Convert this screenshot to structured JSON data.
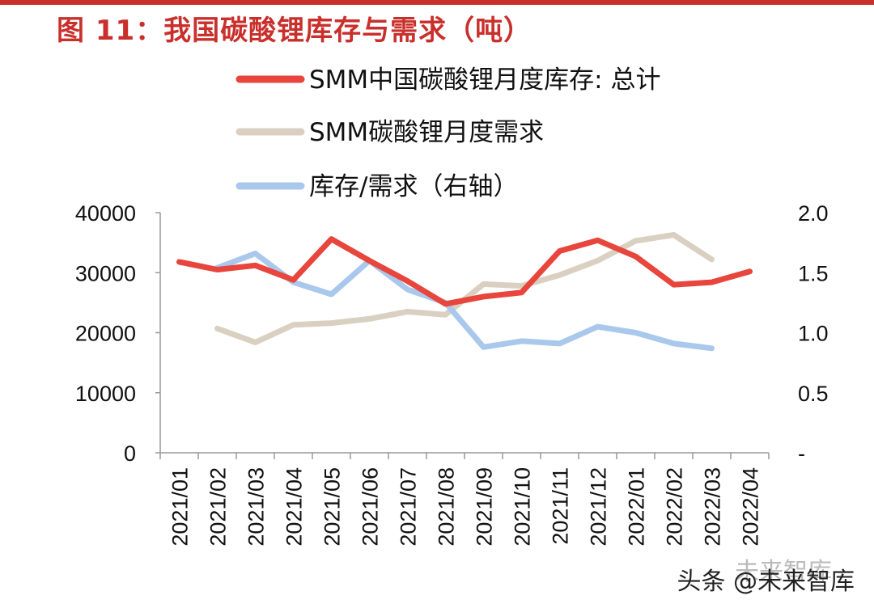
{
  "title": "图 11：我国碳酸锂库存与需求（吨）",
  "watermark": "头条 @未来智库",
  "watermark_faint": "未来智库",
  "colors": {
    "title": "#c9302c",
    "inventory": "#e8453c",
    "demand": "#d9d0c1",
    "ratio": "#a9c8ec"
  },
  "chart_data": {
    "type": "line",
    "x": [
      "2021/01",
      "2021/02",
      "2021/03",
      "2021/04",
      "2021/05",
      "2021/06",
      "2021/07",
      "2021/08",
      "2021/09",
      "2021/10",
      "2021/11",
      "2021/12",
      "2022/01",
      "2022/02",
      "2022/03",
      "2022/04"
    ],
    "y_left": {
      "range": [
        0,
        40000
      ],
      "ticks": [
        "0",
        "10000",
        "20000",
        "30000",
        "40000"
      ]
    },
    "y_right": {
      "range": [
        0,
        2.0
      ],
      "ticks": [
        "-",
        "0.5",
        "1.0",
        "1.5",
        "2.0"
      ]
    },
    "legend_position": "top",
    "series": [
      {
        "name": "SMM中国碳酸锂月度库存: 总计",
        "axis": "left",
        "color": "#e8453c",
        "values": [
          31800,
          30500,
          31200,
          28800,
          35600,
          32000,
          28600,
          24800,
          26000,
          26700,
          33600,
          35400,
          32700,
          28000,
          28400,
          30200
        ]
      },
      {
        "name": "SMM碳酸锂月度需求",
        "axis": "left",
        "color": "#d9d0c1",
        "values": [
          null,
          20700,
          18400,
          21300,
          21600,
          22300,
          23500,
          23000,
          28100,
          27800,
          29600,
          32000,
          35300,
          36300,
          32200,
          null
        ]
      },
      {
        "name": "库存/需求（右轴）",
        "axis": "right",
        "color": "#a9c8ec",
        "values": [
          null,
          1.54,
          1.66,
          1.42,
          1.32,
          1.6,
          1.36,
          1.25,
          0.88,
          0.93,
          0.91,
          1.05,
          1.0,
          0.91,
          0.87,
          null
        ]
      }
    ]
  }
}
